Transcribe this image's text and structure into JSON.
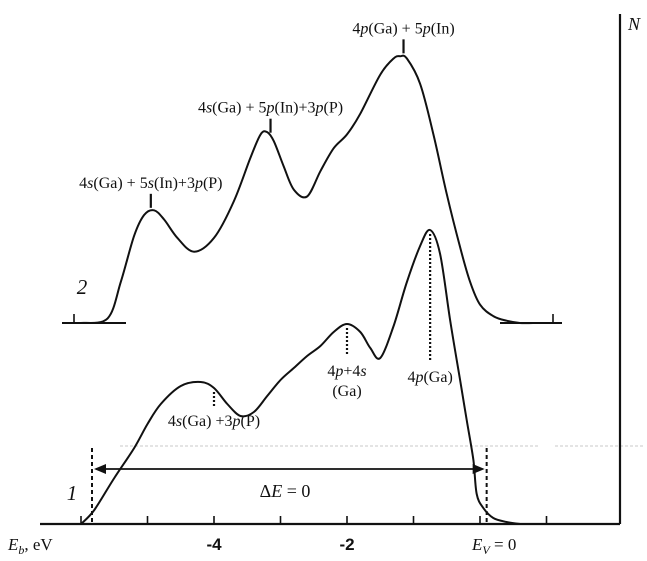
{
  "chart_data": {
    "type": "line",
    "title": "",
    "xlabel": "E_b, eV",
    "ylabel": "N",
    "axis": {
      "x_symbol": "E",
      "x_symbol_sub": "b",
      "x_unit_suffix": ", eV",
      "y_symbol": "N"
    },
    "xlim": [
      -6.3,
      1.9
    ],
    "grid": false,
    "legend": "none",
    "x_ticks": [
      {
        "x": -4,
        "label": "-4"
      },
      {
        "x": -2,
        "label": "-2"
      },
      {
        "x": 0,
        "label": "0"
      }
    ],
    "minor_ticks_x": [
      -6,
      -5,
      -4,
      -3,
      -2,
      -1,
      0,
      1
    ],
    "series": [
      {
        "name": "2",
        "x": [
          -6,
          -5.6,
          -5.4,
          -5.2,
          -5.05,
          -4.9,
          -4.75,
          -4.55,
          -4.3,
          -4.0,
          -3.7,
          -3.45,
          -3.3,
          -3.2,
          -3.1,
          -2.95,
          -2.8,
          -2.6,
          -2.4,
          -2.2,
          -2.0,
          -1.8,
          -1.5,
          -1.3,
          -1.2,
          -1.1,
          -0.9,
          -0.7,
          -0.5,
          -0.3,
          -0.15,
          0,
          0.2,
          0.4,
          0.6,
          0.8,
          1.0
        ],
        "y": [
          0,
          0.02,
          0.18,
          0.38,
          0.47,
          0.49,
          0.45,
          0.37,
          0.31,
          0.37,
          0.53,
          0.72,
          0.82,
          0.83,
          0.79,
          0.68,
          0.58,
          0.55,
          0.66,
          0.76,
          0.82,
          0.91,
          1.08,
          1.15,
          1.16,
          1.15,
          1.04,
          0.82,
          0.56,
          0.33,
          0.18,
          0.08,
          0.03,
          0.01,
          0,
          0,
          0
        ]
      },
      {
        "name": "1",
        "x": [
          -6,
          -5.8,
          -5.5,
          -5.2,
          -5.0,
          -4.8,
          -4.5,
          -4.2,
          -4.0,
          -3.8,
          -3.6,
          -3.4,
          -3.2,
          -3.0,
          -2.8,
          -2.6,
          -2.4,
          -2.2,
          -2.0,
          -1.8,
          -1.65,
          -1.5,
          -1.3,
          -1.1,
          -0.9,
          -0.75,
          -0.6,
          -0.45,
          -0.3,
          -0.2,
          -0.1,
          -0.05,
          0.05,
          0.2,
          0.4,
          0.6
        ],
        "y": [
          0,
          0.07,
          0.23,
          0.38,
          0.5,
          0.6,
          0.69,
          0.71,
          0.68,
          0.6,
          0.54,
          0.56,
          0.64,
          0.72,
          0.78,
          0.84,
          0.89,
          0.96,
          1.0,
          0.96,
          0.88,
          0.83,
          0.99,
          1.21,
          1.39,
          1.47,
          1.35,
          1.02,
          0.72,
          0.52,
          0.32,
          0.15,
          0.08,
          0.03,
          0.01,
          0
        ]
      }
    ],
    "annotations": [
      {
        "text": "4p(Ga) + 5p(In)",
        "parts": [
          [
            "4",
            false
          ],
          [
            "p",
            true
          ],
          [
            "(Ga) + 5",
            false
          ],
          [
            "p",
            true
          ],
          [
            "(In)",
            false
          ]
        ],
        "series": "2",
        "x": -1.15,
        "style": "solid"
      },
      {
        "text": "4s(Ga) + 5p(In)+3p(P)",
        "parts": [
          [
            "4",
            false
          ],
          [
            "s",
            true
          ],
          [
            "(Ga) + 5",
            false
          ],
          [
            "p",
            true
          ],
          [
            "(In)+3",
            false
          ],
          [
            "p",
            true
          ],
          [
            "(P)",
            false
          ]
        ],
        "series": "2",
        "x": -3.15,
        "style": "solid"
      },
      {
        "text": "4s(Ga) + 5s(In)+3p(P)",
        "parts": [
          [
            "4",
            false
          ],
          [
            "s",
            true
          ],
          [
            "(Ga) + 5",
            false
          ],
          [
            "s",
            true
          ],
          [
            "(In)+3",
            false
          ],
          [
            "p",
            true
          ],
          [
            "(P)",
            false
          ]
        ],
        "series": "2",
        "x": -4.95,
        "style": "solid"
      },
      {
        "text": "4s(Ga) +3p(P)",
        "parts": [
          [
            "4",
            false
          ],
          [
            "s",
            true
          ],
          [
            "(Ga) +3",
            false
          ],
          [
            "p",
            true
          ],
          [
            "(P)",
            false
          ]
        ],
        "series": "1",
        "x": -4.0,
        "style": "dotted"
      },
      {
        "text": "4p+4s (Ga)",
        "parts": [
          [
            "4",
            false
          ],
          [
            "p",
            true
          ],
          [
            "+4",
            false
          ],
          [
            "s",
            true
          ]
        ],
        "line2": "(Ga)",
        "series": "1",
        "x": -2.0,
        "style": "dotted"
      },
      {
        "text": "4p(Ga)",
        "parts": [
          [
            "4",
            false
          ],
          [
            "p",
            true
          ],
          [
            "(Ga)",
            false
          ]
        ],
        "series": "1",
        "x": -0.75,
        "style": "dotted"
      }
    ],
    "delta_label": {
      "text": "ΔE = 0",
      "symbol": "E",
      "value": " = 0",
      "from_x": -5.95,
      "to_x": 0.1
    },
    "ev_label": {
      "symbol": "E",
      "sub": "V",
      "value": " = 0"
    },
    "curve_labels": {
      "series_2": "2",
      "series_1": "1"
    }
  }
}
